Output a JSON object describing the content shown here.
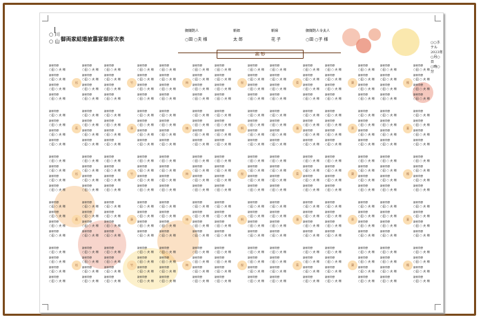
{
  "header": {
    "circle_lines": [
      "○ 川",
      "○ 山"
    ],
    "title": "御両家結婚披露宴御席次表"
  },
  "roles": [
    {
      "label": "御媒酌人",
      "name": "○田 ○夫 様"
    },
    {
      "label": "新郎",
      "name": "太 郎"
    },
    {
      "label": "新婦",
      "name": "花 子"
    },
    {
      "label": "御媒酌人令夫人",
      "name": "○田 ○子 様"
    }
  ],
  "head_table": "高 砂",
  "date_info": [
    "○○ホテル",
    "2023年○月○日",
    "○時○分"
  ],
  "guest_entry": {
    "title": "新郎同僚",
    "name": "○田 ○ 夫 様"
  },
  "table_labels": [
    "松",
    "竹",
    "梅",
    "桜",
    "菊",
    "蘭",
    "楓",
    "萩",
    "藤",
    "椿",
    "桐",
    "蓮",
    "葵",
    "菫"
  ],
  "colors": {
    "frame": "#7a4a1c",
    "table_circle": "#fbd9a6",
    "flower_red": "#e8866e",
    "flower_orange": "#f4a95a",
    "flower_yellow": "#f6d56b"
  }
}
